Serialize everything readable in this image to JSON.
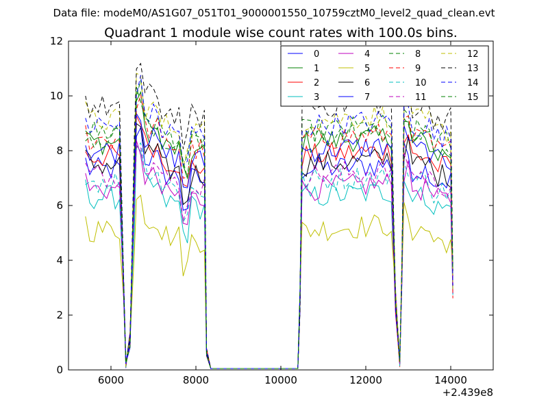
{
  "chart_data": {
    "type": "line",
    "suptitle": "Data file: modeM0/AS1G07_051T01_9000001550_10759cztM0_level2_quad_clean.evt",
    "title": "Quadrant 1 module wise count rates with 100.0s bins.",
    "xlabel": "",
    "ylabel": "",
    "x_offset_label": "+2.439e8",
    "xlim": [
      5000,
      15000
    ],
    "ylim": [
      0,
      12
    ],
    "xticks": [
      6000,
      8000,
      10000,
      12000,
      14000
    ],
    "yticks": [
      0,
      2,
      4,
      6,
      8,
      10,
      12
    ],
    "xtick_labels": [
      "6000",
      "8000",
      "10000",
      "12000",
      "14000"
    ],
    "ytick_labels": [
      "0",
      "2",
      "4",
      "6",
      "8",
      "10",
      "12"
    ],
    "legend_position": "top-right",
    "legend_columns": 4,
    "grid": false,
    "segments": [
      {
        "start": 5400,
        "end": 6200
      },
      {
        "start": 6600,
        "end": 8200
      },
      {
        "start": 10500,
        "end": 12600
      },
      {
        "start": 12900,
        "end": 14100
      }
    ],
    "dips": [
      6350,
      6450,
      12800
    ],
    "series": [
      {
        "name": "0",
        "color": "#0000ff",
        "dash": "solid",
        "level": 7.3
      },
      {
        "name": "1",
        "color": "#008000",
        "dash": "solid",
        "level": 8.3
      },
      {
        "name": "2",
        "color": "#ff0000",
        "dash": "solid",
        "level": 7.8
      },
      {
        "name": "3",
        "color": "#00bfbf",
        "dash": "solid",
        "level": 6.3
      },
      {
        "name": "4",
        "color": "#bf00bf",
        "dash": "solid",
        "level": 6.6
      },
      {
        "name": "5",
        "color": "#bfbf00",
        "dash": "solid",
        "level": 5.1
      },
      {
        "name": "6",
        "color": "#000000",
        "dash": "solid",
        "level": 7.5
      },
      {
        "name": "7",
        "color": "#0000ff",
        "dash": "solid",
        "level": 8.0
      },
      {
        "name": "8",
        "color": "#008000",
        "dash": "dashed",
        "level": 8.7
      },
      {
        "name": "9",
        "color": "#ff0000",
        "dash": "dashed",
        "level": 8.4
      },
      {
        "name": "10",
        "color": "#00bfbf",
        "dash": "dashed",
        "level": 6.9
      },
      {
        "name": "11",
        "color": "#bf00bf",
        "dash": "dashed",
        "level": 7.1
      },
      {
        "name": "12",
        "color": "#bfbf00",
        "dash": "dashed",
        "level": 9.1
      },
      {
        "name": "13",
        "color": "#000000",
        "dash": "dashed",
        "level": 9.6
      },
      {
        "name": "14",
        "color": "#0000ff",
        "dash": "dashed",
        "level": 8.9
      },
      {
        "name": "15",
        "color": "#008000",
        "dash": "dashed",
        "level": 8.5
      }
    ]
  }
}
